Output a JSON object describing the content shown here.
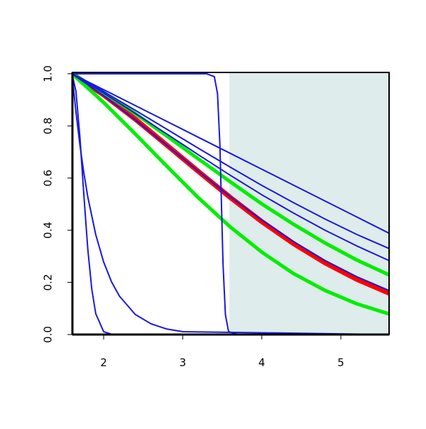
{
  "chart_data": {
    "type": "line",
    "xlim": [
      1.605,
      5.61
    ],
    "ylim": [
      0,
      1.005
    ],
    "xticks": [
      2,
      3,
      4,
      5
    ],
    "yticks": [
      {
        "value": 0,
        "label": "0.0"
      },
      0.2,
      0.4,
      0.6,
      0.8,
      {
        "value": 1,
        "label": "1.0"
      }
    ],
    "shaded_region": {
      "x": [
        3.59,
        5.61
      ],
      "color": "#dfecec"
    },
    "series": [
      {
        "color": "#ff0000",
        "line_width": 7,
        "x": [
          1.6,
          2.0,
          2.4,
          2.8,
          3.2,
          3.6,
          4.0,
          4.4,
          4.8,
          5.2,
          5.6
        ],
        "values": [
          1,
          0.919,
          0.826,
          0.726,
          0.625,
          0.526,
          0.433,
          0.349,
          0.275,
          0.212,
          0.16
        ]
      },
      {
        "color": "#00ee00",
        "line_width": 5,
        "x": [
          1.6,
          2.0,
          2.4,
          2.8,
          3.2,
          3.6,
          4.0,
          4.4,
          4.8,
          5.2,
          5.6
        ],
        "values": [
          1,
          0.928,
          0.847,
          0.761,
          0.673,
          0.586,
          0.501,
          0.423,
          0.351,
          0.286,
          0.23
        ]
      },
      {
        "color": "#00ee00",
        "line_width": 5,
        "x": [
          1.6,
          2.0,
          2.4,
          2.8,
          3.2,
          3.6,
          4.0,
          4.4,
          4.8,
          5.2,
          5.6
        ],
        "values": [
          1,
          0.89,
          0.769,
          0.645,
          0.524,
          0.413,
          0.316,
          0.234,
          0.169,
          0.118,
          0.08
        ]
      },
      {
        "color": "#1a1adb",
        "line_width": 2,
        "x": [
          1.6,
          2.0,
          2.4,
          2.8,
          3.2,
          3.6,
          4.0,
          4.4,
          4.8,
          5.2,
          5.6
        ],
        "values": [
          1,
          0.916,
          0.823,
          0.725,
          0.626,
          0.529,
          0.439,
          0.357,
          0.284,
          0.222,
          0.17
        ]
      },
      {
        "color": "#1a1adb",
        "line_width": 2,
        "x": [
          1.6,
          2.0,
          2.4,
          2.8,
          3.2,
          3.6,
          4.0,
          4.4,
          4.8,
          5.2,
          5.6
        ],
        "values": [
          1,
          0.939,
          0.878,
          0.817,
          0.756,
          0.695,
          0.634,
          0.573,
          0.512,
          0.451,
          0.39
        ]
      },
      {
        "color": "#1a1adb",
        "line_width": 2,
        "x": [
          1.6,
          2.0,
          2.4,
          2.8,
          3.2,
          3.6,
          4.0,
          4.4,
          4.8,
          5.2,
          5.6
        ],
        "values": [
          1,
          0.932,
          0.86,
          0.787,
          0.714,
          0.642,
          0.572,
          0.506,
          0.443,
          0.384,
          0.331
        ]
      },
      {
        "color": "#1a1adb",
        "line_width": 2,
        "x": [
          1.6,
          2.0,
          2.4,
          2.8,
          3.2,
          3.6,
          4.0,
          4.4,
          4.8,
          5.2,
          5.6
        ],
        "values": [
          1,
          0.926,
          0.848,
          0.769,
          0.689,
          0.611,
          0.536,
          0.466,
          0.4,
          0.34,
          0.285
        ]
      },
      {
        "color": "#1a1adb",
        "line_width": 2,
        "x": [
          1.6,
          1.65,
          1.7,
          1.75,
          1.8,
          1.85,
          1.9,
          2.0,
          2.1,
          2.2,
          5.6
        ],
        "values": [
          1,
          0.932,
          0.756,
          0.533,
          0.326,
          0.174,
          0.08,
          0.011,
          0.001,
          0,
          0
        ]
      },
      {
        "color": "#1a1adb",
        "line_width": 2,
        "x": [
          1.6,
          1.65,
          1.7,
          1.75,
          1.8,
          1.9,
          2.0,
          2.1,
          2.2,
          2.4,
          2.6,
          2.8,
          3.0,
          5.6
        ],
        "values": [
          1,
          0.852,
          0.726,
          0.619,
          0.527,
          0.383,
          0.278,
          0.202,
          0.147,
          0.077,
          0.041,
          0.021,
          0.011,
          0
        ]
      },
      {
        "color": "#1a1adb",
        "line_width": 2,
        "x": [
          1.6,
          3.3,
          3.4,
          3.44,
          3.47,
          3.49,
          3.51,
          3.54,
          3.58,
          3.7,
          5.6
        ],
        "values": [
          1,
          1,
          0.989,
          0.924,
          0.731,
          0.5,
          0.269,
          0.076,
          0.011,
          0,
          0
        ]
      }
    ]
  }
}
